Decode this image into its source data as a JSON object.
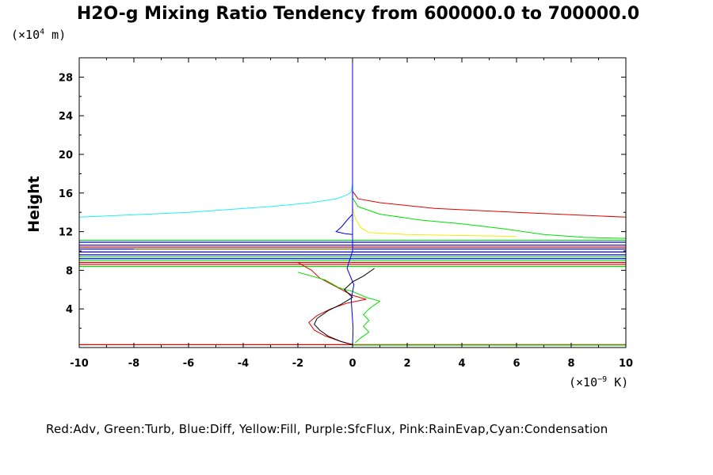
{
  "title": "H2O-g Mixing Ratio Tendency from 600000.0 to 700000.0",
  "legend_text": "Red:Adv, Green:Turb, Blue:Diff, Yellow:Fill, Purple:SfcFlux, Pink:RainEvap,Cyan:Condensation",
  "colors": {
    "Adv": "#e00000",
    "Turb": "#00e000",
    "Diff": "#0000e6",
    "Fill": "#f0f000",
    "SfcFlux": "#a020f0",
    "RainEvap": "#ff80c0",
    "Condensation": "#20f0f0",
    "Total": "#000000"
  },
  "chart_data": {
    "type": "line",
    "title": "H2O-g Mixing Ratio Tendency from 600000.0 to 700000.0",
    "ylabel": "Height",
    "y_unit_label": {
      "pre": "(×10",
      "exp": "4",
      "post": " m)"
    },
    "x_unit_label": {
      "pre": "(×10",
      "exp": "−9",
      "post": " K)"
    },
    "xlim": [
      -10,
      10
    ],
    "ylim": [
      0,
      30
    ],
    "x_ticks": [
      -10,
      -8,
      -6,
      -4,
      -2,
      0,
      2,
      4,
      6,
      8,
      10
    ],
    "y_ticks": [
      4,
      8,
      12,
      16,
      20,
      24,
      28
    ],
    "series": [
      {
        "key": "Condensation",
        "values_xy": [
          [
            -10,
            13.5
          ],
          [
            -6,
            14.0
          ],
          [
            -3,
            14.6
          ],
          [
            -1.5,
            15.0
          ],
          [
            -0.6,
            15.4
          ],
          [
            -0.2,
            15.8
          ],
          [
            -0.05,
            16.1
          ],
          [
            0,
            17
          ],
          [
            0,
            30
          ]
        ]
      },
      {
        "key": "Adv",
        "values_xy": [
          [
            0,
            16.2
          ],
          [
            0.2,
            15.4
          ],
          [
            1,
            15.0
          ],
          [
            3,
            14.4
          ],
          [
            6,
            14.0
          ],
          [
            10,
            13.5
          ]
        ]
      },
      {
        "key": "Turb",
        "values_xy": [
          [
            0,
            15.5
          ],
          [
            0.2,
            14.6
          ],
          [
            1,
            13.8
          ],
          [
            2.5,
            13.2
          ],
          [
            4,
            12.8
          ],
          [
            5.5,
            12.3
          ],
          [
            7,
            11.7
          ],
          [
            8.5,
            11.4
          ],
          [
            10,
            11.3
          ]
        ]
      },
      {
        "key": "Fill",
        "values_xy": [
          [
            0,
            14.5
          ],
          [
            0.1,
            13.4
          ],
          [
            0.3,
            12.4
          ],
          [
            0.6,
            11.9
          ],
          [
            2,
            11.7
          ],
          [
            4,
            11.6
          ],
          [
            6,
            11.5
          ]
        ]
      },
      {
        "key": "Diff",
        "values_xy": [
          [
            0,
            13.8
          ],
          [
            -0.2,
            13.2
          ],
          [
            -0.4,
            12.5
          ],
          [
            -0.6,
            12.0
          ],
          [
            -0.3,
            11.8
          ],
          [
            0,
            11.7
          ]
        ]
      },
      {
        "key": "Adv",
        "values_xy": [
          [
            -2,
            8.8
          ],
          [
            -1.5,
            8.0
          ],
          [
            -1.2,
            7.2
          ],
          [
            -0.8,
            6.6
          ],
          [
            -0.4,
            6.0
          ],
          [
            0,
            5.4
          ],
          [
            0.5,
            5.0
          ],
          [
            -0.2,
            4.6
          ],
          [
            -0.8,
            4.0
          ],
          [
            -1.3,
            3.3
          ],
          [
            -1.6,
            2.6
          ],
          [
            -1.4,
            1.8
          ],
          [
            -1.0,
            1.2
          ],
          [
            -0.5,
            0.7
          ],
          [
            0,
            0.3
          ]
        ]
      },
      {
        "key": "Turb",
        "values_xy": [
          [
            -2,
            7.8
          ],
          [
            -1.5,
            7.4
          ],
          [
            -1.0,
            7.0
          ],
          [
            -0.5,
            6.2
          ],
          [
            0,
            5.8
          ],
          [
            0.5,
            5.2
          ],
          [
            1.0,
            4.8
          ],
          [
            0.6,
            4.0
          ],
          [
            0.4,
            3.4
          ],
          [
            0.6,
            2.8
          ],
          [
            0.4,
            2.2
          ],
          [
            0.6,
            1.6
          ],
          [
            0.3,
            1.0
          ],
          [
            0.1,
            0.5
          ]
        ]
      },
      {
        "key": "Total",
        "values_xy": [
          [
            0.8,
            8.2
          ],
          [
            0.4,
            7.4
          ],
          [
            0,
            6.8
          ],
          [
            -0.3,
            6.0
          ],
          [
            0,
            5.2
          ],
          [
            -0.4,
            4.5
          ],
          [
            -0.9,
            3.8
          ],
          [
            -1.3,
            3.0
          ],
          [
            -1.4,
            2.4
          ],
          [
            -1.2,
            1.8
          ],
          [
            -0.9,
            1.2
          ],
          [
            -0.4,
            0.6
          ],
          [
            0,
            0.3
          ]
        ]
      },
      {
        "key": "Diff",
        "values_xy": [
          [
            0,
            30
          ],
          [
            0,
            10
          ],
          [
            -0.2,
            8.2
          ],
          [
            0.05,
            6.5
          ],
          [
            -0.05,
            5.0
          ],
          [
            0.02,
            2.0
          ],
          [
            0,
            0.1
          ]
        ]
      }
    ],
    "bands": [
      {
        "key": "Turb",
        "y": 11.1,
        "x0": -10,
        "x1": 10
      },
      {
        "key": "Diff",
        "y": 10.9,
        "x0": -10,
        "x1": 10
      },
      {
        "key": "Diff",
        "y": 10.6,
        "x0": -10,
        "x1": 10
      },
      {
        "key": "Adv",
        "y": 10.4,
        "x0": -10,
        "x1": 10
      },
      {
        "key": "Diff",
        "y": 10.2,
        "x0": -10,
        "x1": 10
      },
      {
        "key": "Fill",
        "y": 10.15,
        "x0": -8,
        "x1": 0
      },
      {
        "key": "Diff",
        "y": 9.9,
        "x0": -10,
        "x1": 10
      },
      {
        "key": "Diff",
        "y": 9.6,
        "x0": -10,
        "x1": 10
      },
      {
        "key": "Turb",
        "y": 9.4,
        "x0": -10,
        "x1": 10
      },
      {
        "key": "Diff",
        "y": 9.2,
        "x0": -10,
        "x1": 10
      },
      {
        "key": "Turb",
        "y": 9.0,
        "x0": -10,
        "x1": 10
      },
      {
        "key": "Adv",
        "y": 8.8,
        "x0": -10,
        "x1": 10
      },
      {
        "key": "Adv",
        "y": 8.6,
        "x0": -10,
        "x1": 10
      },
      {
        "key": "Turb",
        "y": 8.4,
        "x0": -10,
        "x1": 10
      },
      {
        "key": "Adv",
        "y": 0.3,
        "x0": -10,
        "x1": 10
      },
      {
        "key": "Turb",
        "y": 0.25,
        "x0": 0,
        "x1": 10
      }
    ]
  }
}
